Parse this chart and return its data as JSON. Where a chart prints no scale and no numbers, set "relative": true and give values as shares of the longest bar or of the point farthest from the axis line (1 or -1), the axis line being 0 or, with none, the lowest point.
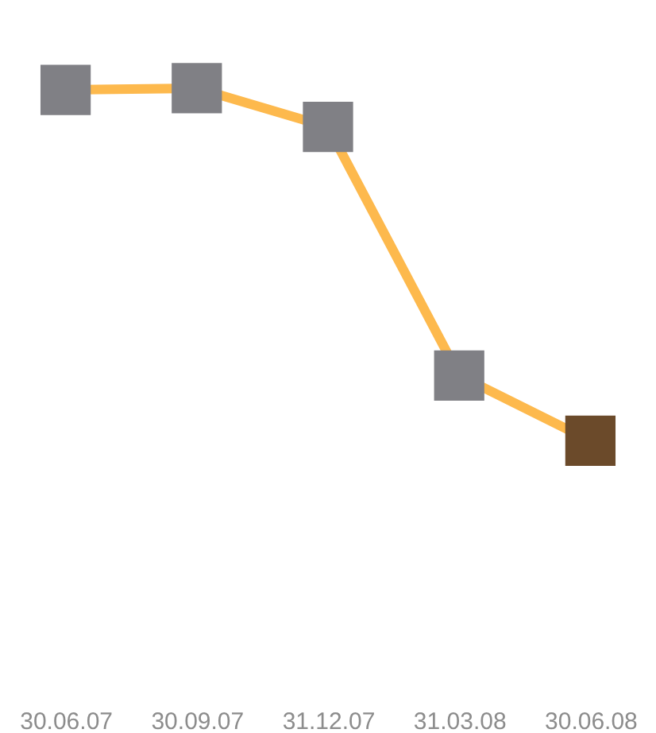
{
  "chart_data": {
    "type": "line",
    "relative": true,
    "categories": [
      "30.06.07",
      "30.09.07",
      "31.12.07",
      "31.03.08",
      "30.06.08"
    ],
    "series": [
      {
        "color": "#fdb94d",
        "values": [
          0.995,
          1.0,
          0.89,
          0.185,
          0.0
        ],
        "colors": [
          "#808085",
          "#808085",
          "#808085",
          "#808085",
          "#6b4a2a"
        ]
      }
    ],
    "marker": "square",
    "line_style": "solid"
  }
}
